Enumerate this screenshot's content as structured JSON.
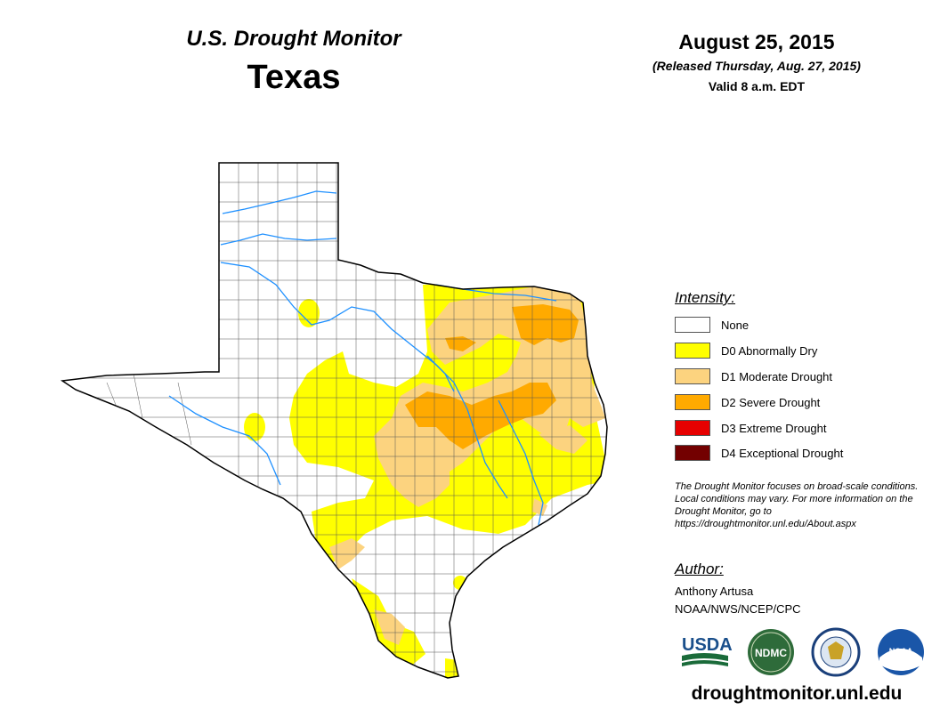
{
  "header": {
    "title": "U.S. Drought Monitor",
    "state": "Texas",
    "date": "August 25, 2015",
    "released": "(Released Thursday, Aug. 27, 2015)",
    "valid": "Valid 8 a.m. EDT"
  },
  "legend": {
    "title": "Intensity:",
    "items": [
      {
        "label": "None",
        "color": "#ffffff"
      },
      {
        "label": "D0 Abnormally Dry",
        "color": "#ffff00"
      },
      {
        "label": "D1 Moderate Drought",
        "color": "#fcd37f"
      },
      {
        "label": "D2 Severe Drought",
        "color": "#ffaa00"
      },
      {
        "label": "D3 Extreme Drought",
        "color": "#e60000"
      },
      {
        "label": "D4 Exceptional Drought",
        "color": "#730000"
      }
    ]
  },
  "note": "The Drought Monitor focuses on broad-scale conditions. Local conditions may vary. For more information on the Drought Monitor, go to https://droughtmonitor.unl.edu/About.aspx",
  "author": {
    "heading": "Author:",
    "name": "Anthony Artusa",
    "org": "NOAA/NWS/NCEP/CPC"
  },
  "logos": {
    "usda": "USDA",
    "ndmc": "NDMC",
    "noaa": "NOAA"
  },
  "footer": {
    "url": "droughtmonitor.unl.edu"
  }
}
